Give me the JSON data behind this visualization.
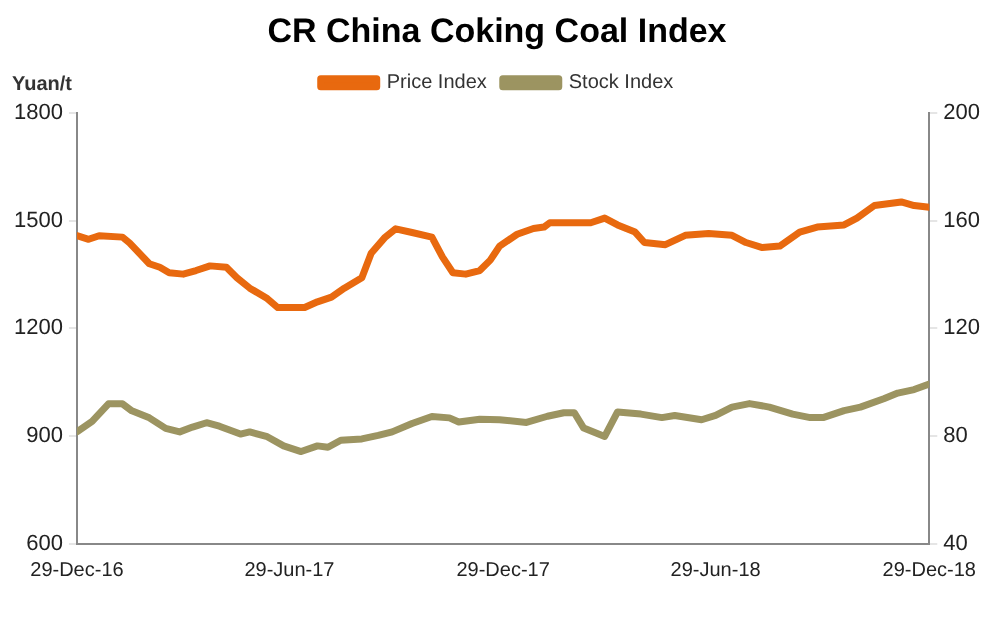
{
  "chart_data": {
    "type": "line",
    "title": "CR China Coking Coal Index",
    "ylabel": "Yuan/t",
    "legend": "top",
    "grid": false,
    "marker": "none",
    "xlim": [
      "2016-12-29",
      "2018-12-29"
    ],
    "xticks": [
      {
        "value": "2016-12-29",
        "label": "29-Dec-16"
      },
      {
        "value": "2017-06-29",
        "label": "29-Jun-17"
      },
      {
        "value": "2017-12-29",
        "label": "29-Dec-17"
      },
      {
        "value": "2018-06-29",
        "label": "29-Jun-18"
      },
      {
        "value": "2018-12-29",
        "label": "29-Dec-18"
      }
    ],
    "ylim": [
      600,
      1800
    ],
    "yticks": [
      600,
      900,
      1200,
      1500,
      1800
    ],
    "y2lim": [
      40,
      200
    ],
    "y2ticks": [
      40,
      80,
      120,
      160,
      200
    ],
    "series": [
      {
        "name": "Price Index",
        "color": "#e8690f",
        "x": [
          "2016-12-29",
          "2017-01-08",
          "2017-01-17",
          "2017-02-06",
          "2017-02-12",
          "2017-03-01",
          "2017-03-10",
          "2017-03-18",
          "2017-03-30",
          "2017-04-10",
          "2017-04-22",
          "2017-05-06",
          "2017-05-15",
          "2017-05-26",
          "2017-06-10",
          "2017-06-19",
          "2017-07-12",
          "2017-07-23",
          "2017-08-04",
          "2017-08-15",
          "2017-08-30",
          "2017-09-07",
          "2017-09-19",
          "2017-09-28",
          "2017-10-12",
          "2017-10-29",
          "2017-11-07",
          "2017-11-16",
          "2017-11-27",
          "2017-12-09",
          "2017-12-18",
          "2017-12-26",
          "2018-01-10",
          "2018-01-24",
          "2018-02-02",
          "2018-02-07",
          "2018-03-14",
          "2018-03-26",
          "2018-04-06",
          "2018-04-21",
          "2018-04-29",
          "2018-05-17",
          "2018-06-03",
          "2018-06-23",
          "2018-07-13",
          "2018-07-25",
          "2018-08-08",
          "2018-08-23",
          "2018-09-09",
          "2018-09-24",
          "2018-10-17",
          "2018-10-28",
          "2018-11-12",
          "2018-12-05",
          "2018-12-16",
          "2018-12-29"
        ],
        "values": [
          1458,
          1448,
          1458,
          1454,
          1438,
          1380,
          1370,
          1355,
          1351,
          1361,
          1374,
          1370,
          1341,
          1312,
          1283,
          1258,
          1258,
          1274,
          1287,
          1312,
          1341,
          1409,
          1454,
          1477,
          1467,
          1454,
          1399,
          1355,
          1351,
          1361,
          1390,
          1429,
          1462,
          1478,
          1482,
          1494,
          1494,
          1507,
          1488,
          1468,
          1439,
          1433,
          1459,
          1464,
          1459,
          1439,
          1425,
          1429,
          1468,
          1482,
          1488,
          1507,
          1542,
          1552,
          1542,
          1537
        ]
      },
      {
        "name": "Stock Index",
        "color": "#9c9461",
        "axis": "y2",
        "x": [
          "2016-12-29",
          "2017-01-11",
          "2017-01-25",
          "2017-02-06",
          "2017-02-14",
          "2017-03-01",
          "2017-03-15",
          "2017-03-27",
          "2017-04-07",
          "2017-04-19",
          "2017-04-30",
          "2017-05-18",
          "2017-05-26",
          "2017-06-10",
          "2017-06-24",
          "2017-07-09",
          "2017-07-23",
          "2017-08-01",
          "2017-08-12",
          "2017-08-30",
          "2017-09-13",
          "2017-09-25",
          "2017-10-12",
          "2017-10-29",
          "2017-11-13",
          "2017-11-21",
          "2017-12-09",
          "2017-12-26",
          "2018-01-18",
          "2018-02-05",
          "2018-02-19",
          "2018-02-28",
          "2018-03-08",
          "2018-03-26",
          "2018-04-06",
          "2018-04-26",
          "2018-05-14",
          "2018-05-25",
          "2018-06-17",
          "2018-06-29",
          "2018-07-13",
          "2018-07-28",
          "2018-08-14",
          "2018-09-03",
          "2018-09-18",
          "2018-09-29",
          "2018-10-17",
          "2018-10-31",
          "2018-11-20",
          "2018-12-02",
          "2018-12-16",
          "2018-12-29"
        ],
        "values": [
          81.6,
          85.5,
          92,
          92,
          89.4,
          86.8,
          82.9,
          81.6,
          83.4,
          85,
          83.7,
          80.8,
          81.6,
          79.8,
          76.4,
          74.3,
          76.4,
          75.9,
          78.5,
          79,
          80.3,
          81.6,
          84.7,
          87.3,
          86.8,
          85.3,
          86.3,
          86.1,
          85.1,
          87.4,
          88.7,
          88.7,
          83,
          79.9,
          89,
          88.2,
          86.9,
          87.7,
          86.1,
          87.7,
          90.8,
          92.1,
          90.8,
          88.2,
          86.9,
          86.9,
          89.5,
          90.8,
          93.9,
          96,
          97.3,
          99.4
        ]
      }
    ]
  }
}
